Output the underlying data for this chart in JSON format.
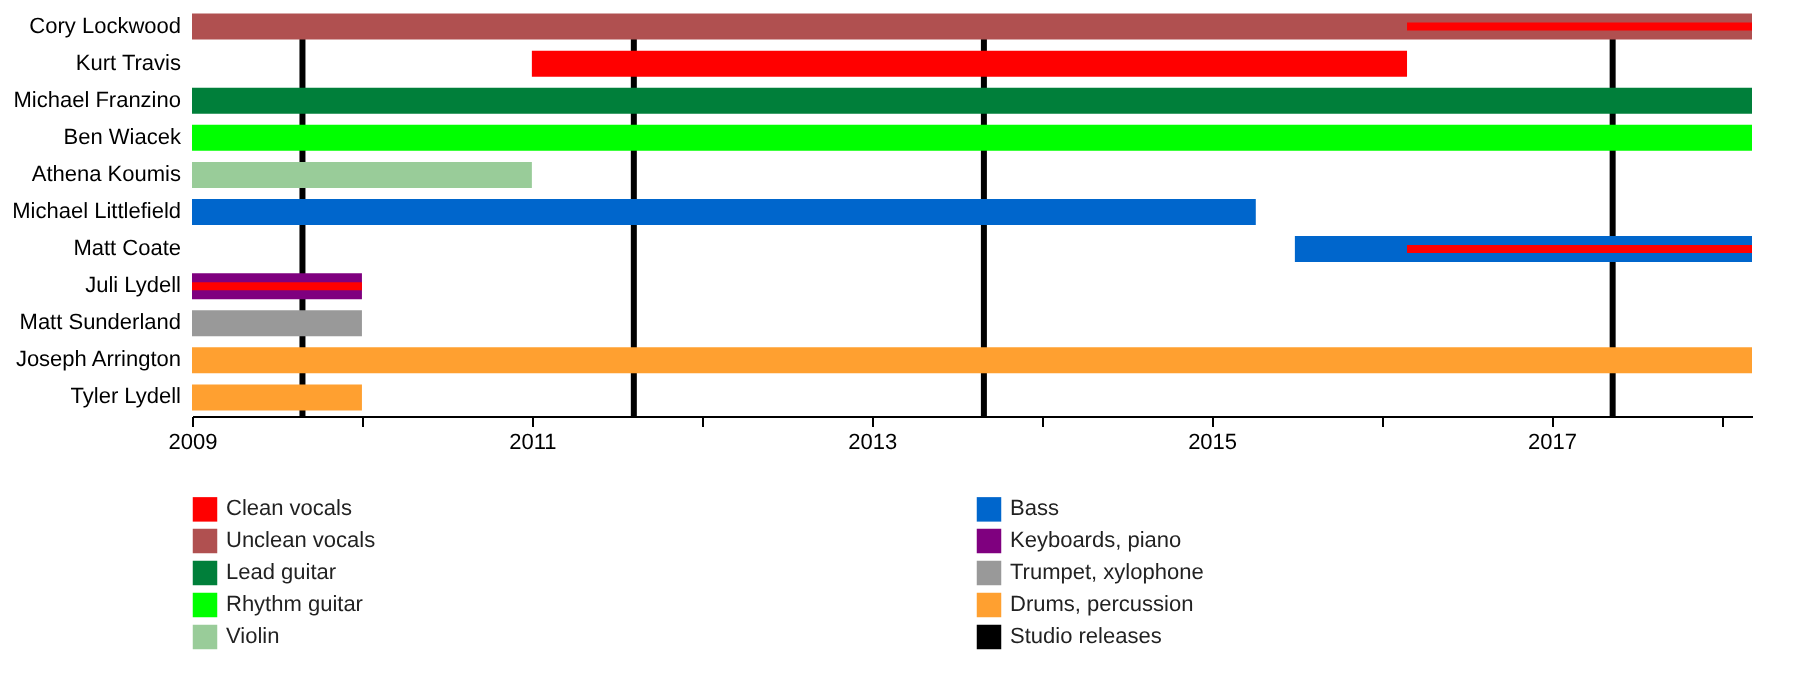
{
  "chart_data": {
    "type": "bar",
    "orientation": "horizontal",
    "categories": [
      "Cory Lockwood",
      "Kurt Travis",
      "Michael Franzino",
      "Ben Wiacek",
      "Athena Koumis",
      "Michael Littlefield",
      "Matt Coate",
      "Juli Lydell",
      "Matt Sunderland",
      "Joseph Arrington",
      "Tyler Lydell"
    ],
    "series": [
      {
        "name": "Clean vocals",
        "color": "#ff0000",
        "base": [
          null,
          2011.0,
          null,
          null,
          null,
          null,
          null,
          null,
          null,
          null,
          null
        ],
        "values": [
          null,
          5.15,
          null,
          null,
          null,
          null,
          null,
          null,
          null,
          null,
          null
        ]
      },
      {
        "name": "Unclean vocals",
        "color": "#b05050",
        "base": [
          2009,
          null,
          null,
          null,
          null,
          null,
          null,
          null,
          null,
          null,
          null
        ],
        "values": [
          9.18,
          null,
          null,
          null,
          null,
          null,
          null,
          null,
          null,
          null,
          null
        ]
      },
      {
        "name": "Lead guitar",
        "color": "#007f3a",
        "base": [
          null,
          null,
          2009,
          null,
          null,
          null,
          null,
          null,
          null,
          null,
          null
        ],
        "values": [
          null,
          null,
          9.18,
          null,
          null,
          null,
          null,
          null,
          null,
          null,
          null
        ]
      },
      {
        "name": "Rhythm guitar",
        "color": "#00ff00",
        "base": [
          null,
          null,
          null,
          2009,
          null,
          null,
          null,
          null,
          null,
          null,
          null
        ],
        "values": [
          null,
          null,
          null,
          9.18,
          null,
          null,
          null,
          null,
          null,
          null,
          null
        ]
      },
      {
        "name": "Violin",
        "color": "#99cc99",
        "base": [
          null,
          null,
          null,
          null,
          2009,
          null,
          null,
          null,
          null,
          null,
          null
        ],
        "values": [
          null,
          null,
          null,
          null,
          2.0,
          null,
          null,
          null,
          null,
          null,
          null
        ]
      },
      {
        "name": "Bass",
        "color": "#0066cc",
        "base": [
          null,
          null,
          null,
          null,
          null,
          2009,
          2015.49,
          null,
          null,
          null,
          null
        ],
        "values": [
          null,
          null,
          null,
          null,
          null,
          6.26,
          2.69,
          null,
          null,
          null,
          null
        ]
      },
      {
        "name": "Keyboards, piano",
        "color": "#7f007f",
        "base": [
          null,
          null,
          null,
          null,
          null,
          null,
          null,
          2009,
          null,
          null,
          null
        ],
        "values": [
          null,
          null,
          null,
          null,
          null,
          null,
          null,
          1.0,
          null,
          null,
          null
        ]
      },
      {
        "name": "Trumpet, xylophone",
        "color": "#999999",
        "base": [
          null,
          null,
          null,
          null,
          null,
          null,
          null,
          null,
          2009,
          null,
          null
        ],
        "values": [
          null,
          null,
          null,
          null,
          null,
          null,
          null,
          null,
          1.0,
          null,
          null
        ]
      },
      {
        "name": "Drums, percussion",
        "color": "#ffa030",
        "base": [
          null,
          null,
          null,
          null,
          null,
          null,
          null,
          null,
          null,
          2009,
          2009
        ],
        "values": [
          null,
          null,
          null,
          null,
          null,
          null,
          null,
          null,
          null,
          9.18,
          1.0
        ]
      },
      {
        "color": "#ff0000",
        "base": [
          2016.15,
          null,
          null,
          null,
          null,
          null,
          2016.15,
          2009,
          null,
          null,
          null
        ],
        "values": [
          2.03,
          null,
          null,
          null,
          null,
          null,
          2.03,
          1.0,
          null,
          null,
          null
        ]
      }
    ],
    "ref_lines": [
      {
        "axis": "x",
        "value": 2009.65,
        "label": "Studio releases",
        "color": "#000000"
      },
      {
        "axis": "x",
        "value": 2011.6,
        "color": "#000000"
      },
      {
        "axis": "x",
        "value": 2013.66,
        "color": "#000000"
      },
      {
        "axis": "x",
        "value": 2017.36,
        "color": "#000000"
      }
    ],
    "xlim": [
      2009,
      2018.18
    ],
    "xticks": [
      2009,
      {
        "value": 2010,
        "label": null
      },
      2011,
      {
        "value": 2012,
        "label": null
      },
      2013,
      {
        "value": 2014,
        "label": null
      },
      2015,
      {
        "value": 2016,
        "label": null
      },
      2017,
      {
        "value": 2018,
        "label": null
      }
    ],
    "grid": false,
    "legend": "bottom"
  }
}
